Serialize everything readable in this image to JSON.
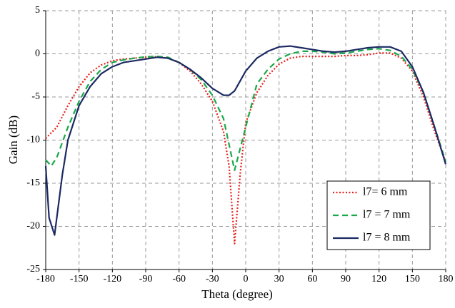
{
  "chart_data": {
    "type": "line",
    "xlabel": "Theta (degree)",
    "ylabel": "Gain (dB)",
    "xlim": [
      -180,
      180
    ],
    "xticks": [
      -180,
      -150,
      -120,
      -90,
      -60,
      -30,
      0,
      30,
      60,
      90,
      120,
      150,
      180
    ],
    "ylim": [
      -25,
      5
    ],
    "yticks": [
      -25,
      -20,
      -15,
      -10,
      -5,
      0,
      5
    ],
    "grid": true,
    "legend": "lower right",
    "series": [
      {
        "name": "l7= 6 mm",
        "color": "#e8211d",
        "dash": "dotted",
        "x": [
          -180,
          -170,
          -160,
          -150,
          -140,
          -130,
          -120,
          -110,
          -100,
          -90,
          -80,
          -70,
          -60,
          -50,
          -40,
          -30,
          -20,
          -15,
          -10,
          -5,
          0,
          10,
          20,
          30,
          40,
          50,
          60,
          70,
          80,
          90,
          100,
          110,
          120,
          130,
          140,
          150,
          160,
          170,
          180
        ],
        "values": [
          -9.8,
          -8.5,
          -6,
          -3.8,
          -2.2,
          -1.3,
          -0.8,
          -0.6,
          -0.5,
          -0.4,
          -0.35,
          -0.5,
          -1,
          -2,
          -3.5,
          -5.5,
          -9,
          -13,
          -22,
          -14,
          -8,
          -4.5,
          -2.5,
          -1.2,
          -0.5,
          -0.3,
          -0.3,
          -0.3,
          -0.3,
          -0.2,
          -0.2,
          -0.1,
          0.1,
          0.1,
          -0.5,
          -2,
          -5,
          -9,
          -12.5
        ]
      },
      {
        "name": "l7 = 7 mm",
        "color": "#1aa84a",
        "dash": "dashed",
        "x": [
          -180,
          -175,
          -170,
          -160,
          -150,
          -140,
          -130,
          -120,
          -110,
          -100,
          -90,
          -80,
          -70,
          -60,
          -50,
          -40,
          -30,
          -20,
          -10,
          0,
          10,
          20,
          30,
          40,
          50,
          60,
          70,
          80,
          90,
          100,
          110,
          120,
          130,
          140,
          150,
          160,
          170,
          180
        ],
        "values": [
          -12.3,
          -13,
          -12,
          -8.5,
          -5.5,
          -3.2,
          -1.8,
          -1,
          -0.7,
          -0.5,
          -0.35,
          -0.3,
          -0.4,
          -1,
          -1.8,
          -3,
          -4.8,
          -7.5,
          -13.5,
          -8.5,
          -3.5,
          -1.8,
          -0.6,
          0,
          0.3,
          0.3,
          0.2,
          0,
          0.1,
          0.3,
          0.5,
          0.6,
          0.4,
          -0.3,
          -1.8,
          -4.5,
          -8.5,
          -12.5
        ]
      },
      {
        "name": "l7 = 8 mm",
        "color": "#1b2a63",
        "dash": "solid",
        "x": [
          -180,
          -177,
          -172,
          -165,
          -160,
          -150,
          -140,
          -130,
          -120,
          -110,
          -100,
          -90,
          -80,
          -70,
          -60,
          -50,
          -40,
          -30,
          -20,
          -15,
          -10,
          0,
          10,
          20,
          30,
          40,
          50,
          60,
          70,
          80,
          90,
          100,
          110,
          120,
          130,
          140,
          150,
          160,
          170,
          180
        ],
        "values": [
          -13,
          -19,
          -21,
          -14,
          -10,
          -6,
          -3.8,
          -2.3,
          -1.5,
          -1,
          -0.8,
          -0.6,
          -0.4,
          -0.5,
          -1,
          -1.8,
          -2.8,
          -4,
          -4.8,
          -4.8,
          -4.3,
          -2,
          -0.5,
          0.3,
          0.8,
          0.9,
          0.7,
          0.5,
          0.3,
          0.2,
          0.3,
          0.5,
          0.7,
          0.8,
          0.8,
          0.3,
          -1.5,
          -4.5,
          -8.5,
          -12.8
        ]
      }
    ]
  }
}
